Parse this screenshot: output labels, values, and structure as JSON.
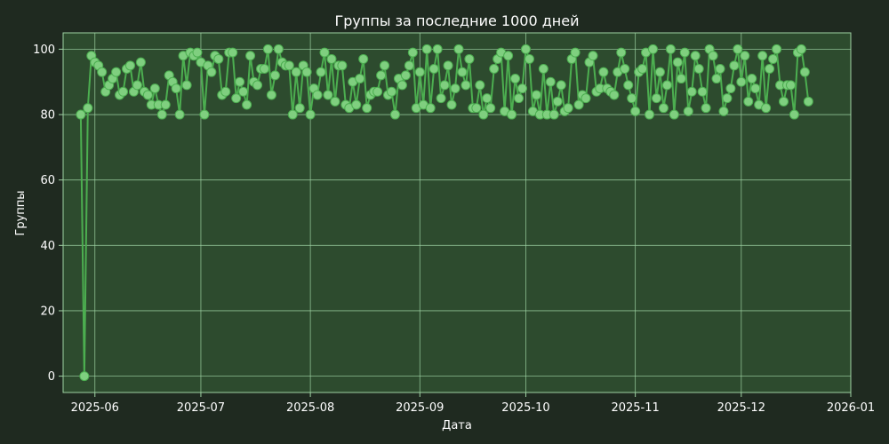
{
  "chart_data": {
    "type": "line",
    "title": "Группы за последние 1000 дней",
    "xlabel": "Дата",
    "ylabel": "Группы",
    "xlim": [
      "2025-05-23",
      "2026-01-01"
    ],
    "ylim": [
      -5,
      105
    ],
    "x_ticks": [
      "2025-06",
      "2025-07",
      "2025-08",
      "2025-09",
      "2025-10",
      "2025-11",
      "2025-12",
      "2026-01"
    ],
    "y_ticks": [
      0,
      20,
      40,
      60,
      80,
      100
    ],
    "grid": true,
    "colors": {
      "background": "#1f2a20",
      "plot_background": "#2d4b2e",
      "line": "#4cae50",
      "marker": "#7fcf7f",
      "grid": "#9fd3a3",
      "text": "#ffffff"
    },
    "series": [
      {
        "x_start": "2025-05-28",
        "x_step_days": 1,
        "values": [
          80,
          0,
          82,
          98,
          96,
          95,
          93,
          87,
          89,
          91,
          93,
          86,
          87,
          94,
          95,
          87,
          89,
          96,
          87,
          86,
          83,
          88,
          83,
          80,
          83,
          92,
          90,
          88,
          80,
          98,
          89,
          99,
          98,
          99,
          96,
          80,
          95,
          93,
          98,
          97,
          86,
          87,
          99,
          99,
          85,
          90,
          87,
          83,
          98,
          90,
          89,
          94,
          94,
          100,
          86,
          92,
          100,
          96,
          95,
          95,
          80,
          93,
          82,
          95,
          93,
          80,
          88,
          86,
          93,
          99,
          86,
          97,
          84,
          95,
          95,
          83,
          82,
          90,
          83,
          91,
          97,
          82,
          86,
          87,
          87,
          92,
          95,
          86,
          87,
          80,
          91,
          89,
          92,
          95,
          99,
          82,
          93,
          83,
          100,
          82,
          94,
          100,
          85,
          89,
          95,
          83,
          88,
          100,
          93,
          89,
          97,
          82,
          82,
          89,
          80,
          85,
          82,
          94,
          97,
          99,
          81,
          98,
          80,
          91,
          85,
          88,
          100,
          97,
          81,
          86,
          80,
          94,
          80,
          90,
          80,
          84,
          89,
          81,
          82,
          97,
          99,
          83,
          86,
          85,
          96,
          98,
          87,
          88,
          93,
          88,
          87,
          86,
          93,
          99,
          94,
          89,
          85,
          81,
          93,
          94,
          99,
          80,
          100,
          85,
          93,
          82,
          89,
          100,
          80,
          96,
          91,
          99,
          81,
          87,
          98,
          94,
          87,
          82,
          100,
          98,
          91,
          94,
          81,
          85,
          88,
          95,
          100,
          90,
          98,
          84,
          91,
          88,
          83,
          98,
          82,
          94,
          97,
          100,
          89,
          84,
          89,
          89,
          80,
          99,
          100,
          93,
          84
        ]
      }
    ]
  }
}
